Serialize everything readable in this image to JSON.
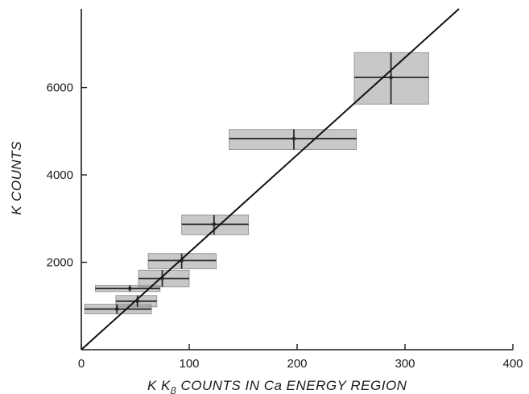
{
  "chart_data": {
    "type": "scatter",
    "title": "",
    "xlabel_main": "K K",
    "xlabel_sub": "β",
    "xlabel_rest": " COUNTS IN Ca ENERGY REGION",
    "ylabel": "K COUNTS",
    "xlim": [
      0,
      400
    ],
    "ylim": [
      0,
      7800
    ],
    "x_ticks": [
      0,
      100,
      200,
      300,
      400
    ],
    "y_ticks": [
      2000,
      4000,
      6000
    ],
    "x_tick_labels": [
      "0",
      "100",
      "200",
      "300",
      "400"
    ],
    "y_tick_labels": [
      "2000",
      "4000",
      "6000"
    ],
    "grid": false,
    "legend": "none",
    "points": [
      {
        "x": 33,
        "y": 930,
        "x_low": 3,
        "x_high": 65,
        "y_low": 820,
        "y_high": 1040
      },
      {
        "x": 45,
        "y": 1400,
        "x_low": 13,
        "x_high": 73,
        "y_low": 1330,
        "y_high": 1470
      },
      {
        "x": 52,
        "y": 1110,
        "x_low": 32,
        "x_high": 70,
        "y_low": 980,
        "y_high": 1240
      },
      {
        "x": 75,
        "y": 1630,
        "x_low": 53,
        "x_high": 100,
        "y_low": 1440,
        "y_high": 1820
      },
      {
        "x": 93,
        "y": 2040,
        "x_low": 62,
        "x_high": 125,
        "y_low": 1850,
        "y_high": 2200
      },
      {
        "x": 123,
        "y": 2870,
        "x_low": 93,
        "x_high": 155,
        "y_low": 2630,
        "y_high": 3080
      },
      {
        "x": 197,
        "y": 4830,
        "x_low": 137,
        "x_high": 255,
        "y_low": 4580,
        "y_high": 5040
      },
      {
        "x": 287,
        "y": 6230,
        "x_low": 253,
        "x_high": 322,
        "y_low": 5620,
        "y_high": 6800
      }
    ],
    "fit_line": {
      "x": [
        0,
        350
      ],
      "y": [
        0,
        7800
      ]
    }
  }
}
